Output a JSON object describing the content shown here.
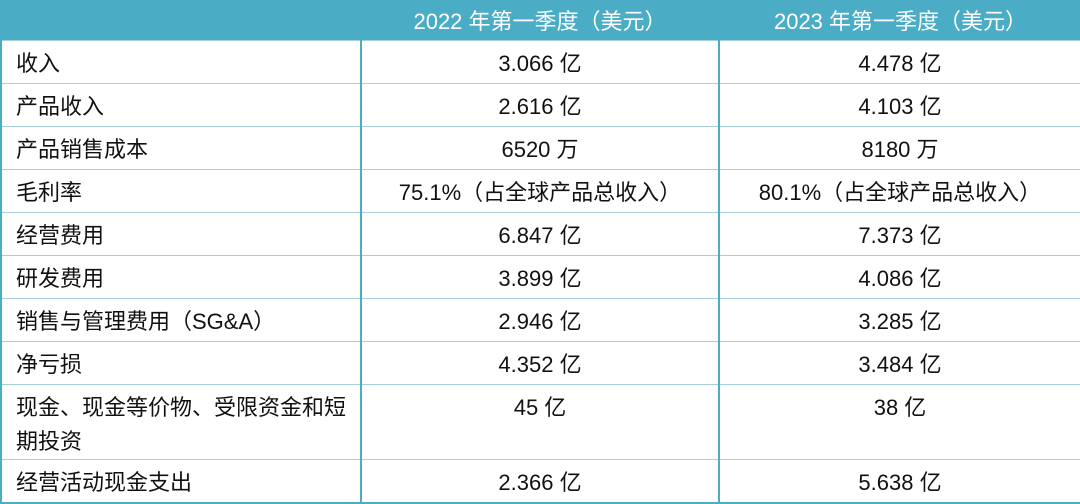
{
  "table": {
    "columns": [
      "2022 年第一季度（美元）",
      "2023 年第一季度（美元）"
    ],
    "rows": [
      [
        "收入",
        "3.066 亿",
        "4.478 亿"
      ],
      [
        "产品收入",
        "2.616 亿",
        "4.103 亿"
      ],
      [
        "产品销售成本",
        "6520 万",
        "8180 万"
      ],
      [
        "毛利率",
        "75.1%（占全球产品总收入）",
        "80.1%（占全球产品总收入）"
      ],
      [
        "经营费用",
        "6.847 亿",
        "7.373 亿"
      ],
      [
        "研发费用",
        "3.899 亿",
        "4.086 亿"
      ],
      [
        "销售与管理费用（SG&A）",
        "2.946 亿",
        "3.285 亿"
      ],
      [
        "净亏损",
        "4.352 亿",
        "3.484 亿"
      ],
      [
        "现金、现金等价物、受限资金和短期投资",
        "45 亿",
        "38 亿"
      ],
      [
        "经营活动现金支出",
        "2.366 亿",
        "5.638 亿"
      ]
    ]
  }
}
